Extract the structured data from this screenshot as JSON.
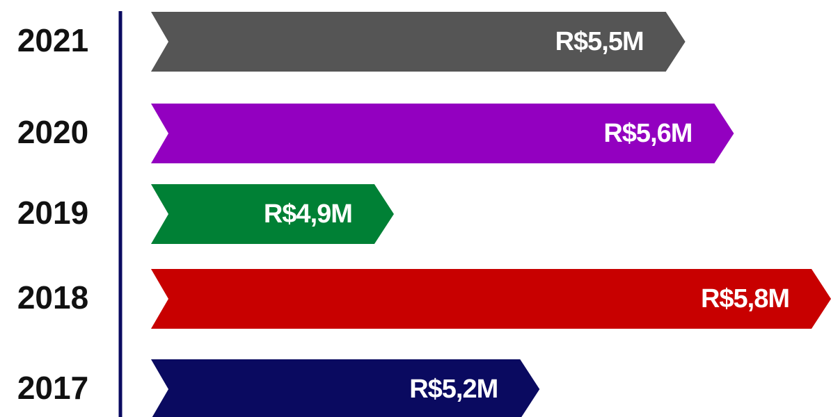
{
  "chart_data": {
    "type": "bar",
    "orientation": "horizontal",
    "categories": [
      "2021",
      "2020",
      "2019",
      "2018",
      "2017"
    ],
    "values": [
      5.5,
      5.6,
      4.9,
      5.8,
      5.2
    ],
    "value_labels": [
      "R$5,5M",
      "R$5,6M",
      "R$4,9M",
      "R$5,8M",
      "R$5,2M"
    ],
    "colors": [
      "#555555",
      "#9300c0",
      "#008035",
      "#c80000",
      "#0a0a60"
    ],
    "xlim": [
      4.4,
      5.8
    ]
  }
}
